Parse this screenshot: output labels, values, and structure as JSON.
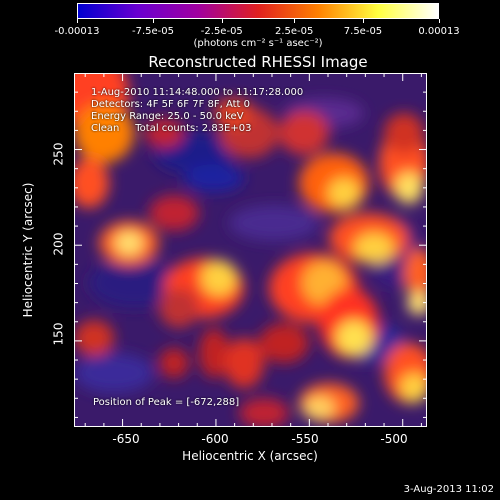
{
  "colorbar": {
    "ticks": [
      "-0.00013",
      "-7.5e-05",
      "-2.5e-05",
      "2.5e-05",
      "7.5e-05",
      "0.00013"
    ],
    "units": "(photons cm⁻² s⁻¹ asec⁻²)",
    "colors": [
      "#0000d0",
      "#6a00d0",
      "#a000a0",
      "#e02020",
      "#ff8000",
      "#ffff40",
      "#ffffff"
    ]
  },
  "title": "Reconstructed RHESSI Image",
  "info": {
    "line1": "1-Aug-2010 11:14:48.000 to 11:17:28.000",
    "line2": "Detectors: 4F 5F 6F 7F 8F, Att 0",
    "line3": "Energy Range: 25.0 - 50.0 keV",
    "line4": "Clean     Total counts: 2.83E+03",
    "peak": "Position of Peak = [-672,288]"
  },
  "axes": {
    "xlabel": "Heliocentric X (arcsec)",
    "ylabel": "Heliocentric Y (arcsec)",
    "xticks": [
      "-650",
      "-600",
      "-550",
      "-500"
    ],
    "yticks": [
      "250",
      "200",
      "150"
    ],
    "xlim": [
      -676,
      -487
    ],
    "ylim": [
      105,
      290
    ]
  },
  "footer": {
    "datestamp": "3-Aug-2013 11:02"
  }
}
